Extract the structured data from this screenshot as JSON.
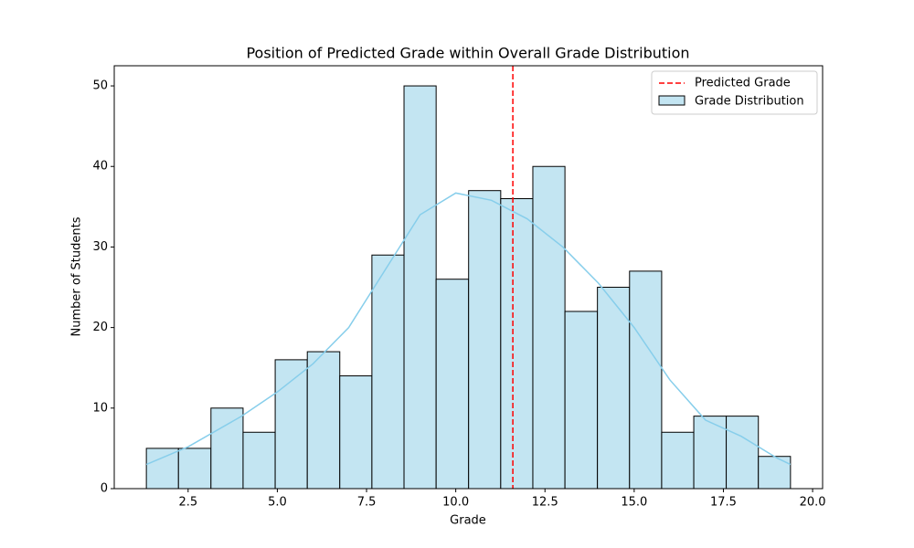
{
  "chart_data": {
    "type": "histogram",
    "title": "Position of Predicted Grade within Overall Grade Distribution",
    "x_label": "Grade",
    "y_label": "Number of Students",
    "name": "Grade Distribution",
    "color": "#c3e5f2",
    "edgecolor": "#000000",
    "bins": [
      1.33,
      2.23,
      3.14,
      4.04,
      4.94,
      5.84,
      6.75,
      7.65,
      8.55,
      9.45,
      10.36,
      11.26,
      12.16,
      13.06,
      13.97,
      14.87,
      15.77,
      16.67,
      17.58,
      18.48,
      19.38
    ],
    "counts": [
      5,
      5,
      10,
      7,
      16,
      17,
      14,
      29,
      50,
      26,
      37,
      36,
      40,
      22,
      25,
      27,
      7,
      9,
      9,
      4
    ],
    "kde": {
      "color": "#87ceeb",
      "x": [
        1.33,
        2.5,
        4,
        5,
        6,
        7,
        8,
        9,
        10,
        11,
        12,
        13,
        14,
        15,
        16,
        17,
        18,
        19,
        19.38
      ],
      "values": [
        3,
        5.2,
        9,
        12,
        15.5,
        20,
        27,
        34,
        36.7,
        35.8,
        33.5,
        30,
        25.5,
        20,
        13.5,
        8.5,
        6.5,
        3.8,
        3
      ]
    },
    "predicted": {
      "name": "Predicted Grade",
      "value": 11.6,
      "color": "#ff0000"
    },
    "xlim": [
      0.43,
      20.28
    ],
    "ylim": [
      0,
      52.5
    ],
    "xticks": [
      {
        "value": 2.5,
        "label": "2.5"
      },
      {
        "value": 5,
        "label": "5.0"
      },
      {
        "value": 7.5,
        "label": "7.5"
      },
      {
        "value": 10,
        "label": "10.0"
      },
      {
        "value": 12.5,
        "label": "12.5"
      },
      {
        "value": 15,
        "label": "15.0"
      },
      {
        "value": 17.5,
        "label": "17.5"
      },
      {
        "value": 20,
        "label": "20.0"
      }
    ],
    "yticks": [
      0,
      10,
      20,
      30,
      40,
      50
    ],
    "legend": "upper right"
  }
}
